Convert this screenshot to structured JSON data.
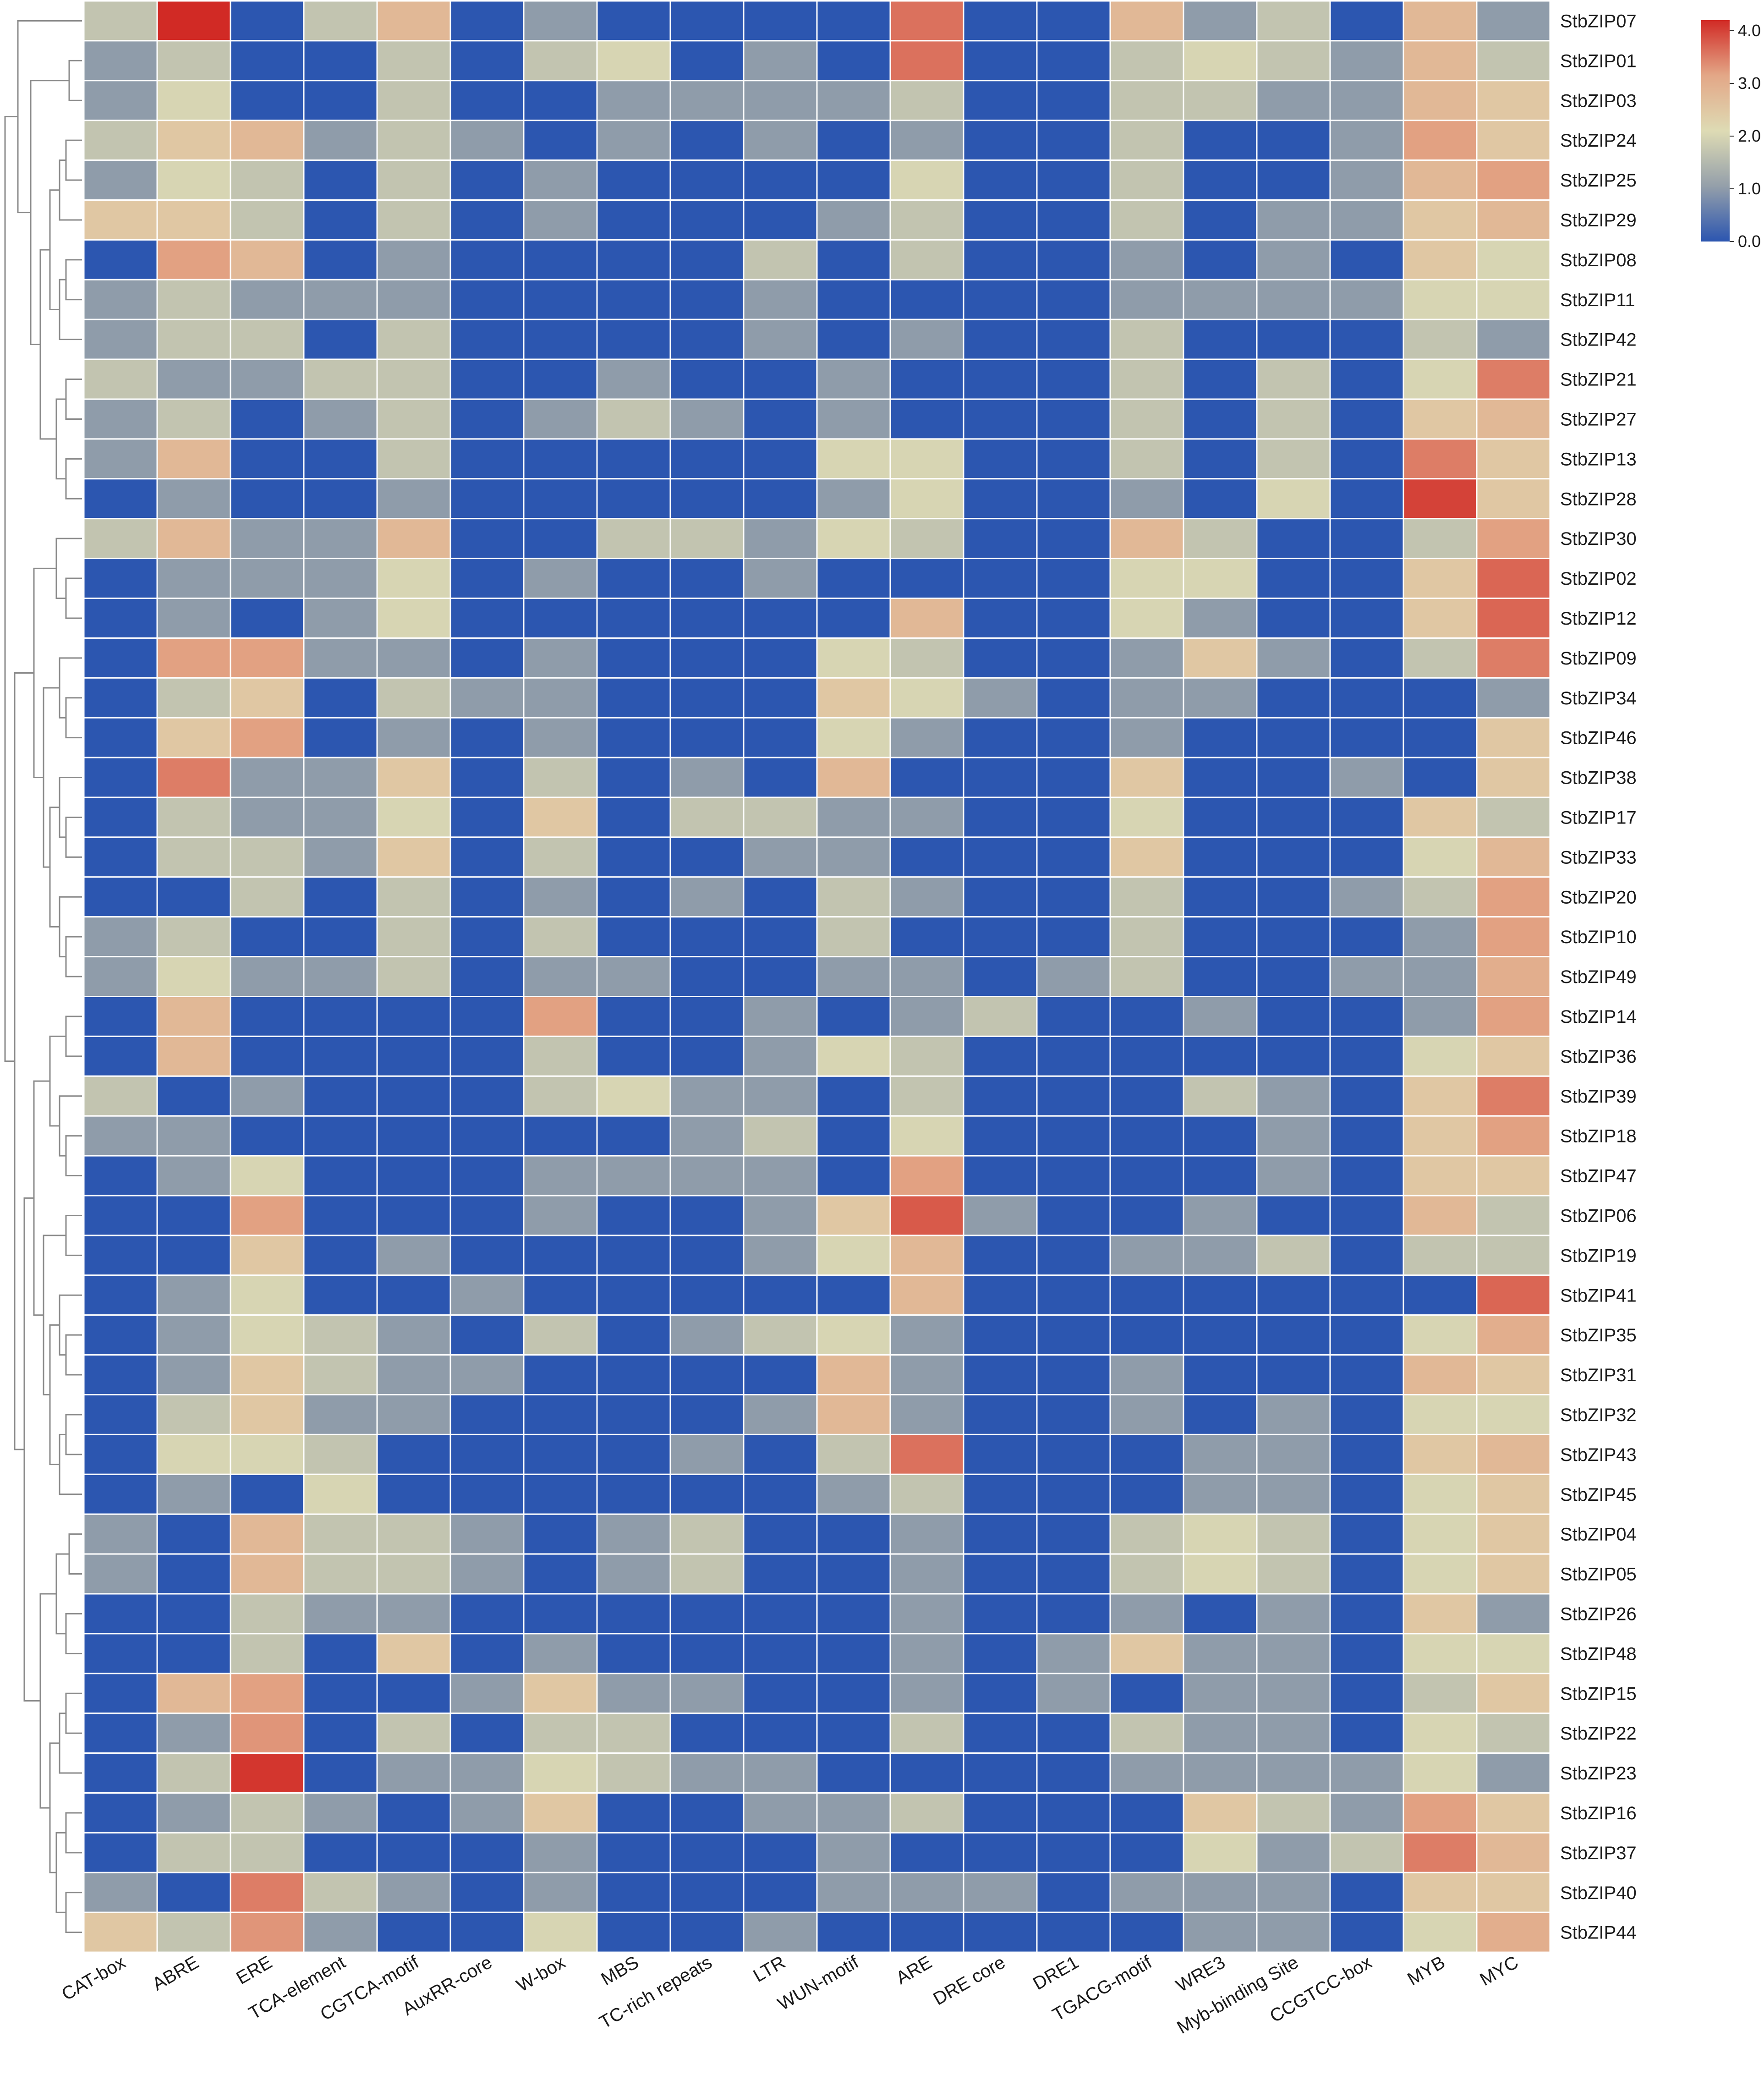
{
  "chart_data": {
    "type": "heatmap",
    "title": "",
    "xlabel": "",
    "ylabel": "",
    "columns": [
      "CAT-box",
      "ABRE",
      "ERE",
      "TCA-element",
      "CGTCA-motif",
      "AuxRR-core",
      "W-box",
      "MBS",
      "TC-rich repeats",
      "LTR",
      "WUN-motif",
      "ARE",
      "DRE core",
      "DRE1",
      "TGACG-motif",
      "WRE3",
      "Myb-binding Site",
      "CCGTCC-box",
      "MYB",
      "MYC"
    ],
    "rows": [
      "StbZIP07",
      "StbZIP01",
      "StbZIP03",
      "StbZIP24",
      "StbZIP25",
      "StbZIP29",
      "StbZIP08",
      "StbZIP11",
      "StbZIP42",
      "StbZIP21",
      "StbZIP27",
      "StbZIP13",
      "StbZIP28",
      "StbZIP30",
      "StbZIP02",
      "StbZIP12",
      "StbZIP09",
      "StbZIP34",
      "StbZIP46",
      "StbZIP38",
      "StbZIP17",
      "StbZIP33",
      "StbZIP20",
      "StbZIP10",
      "StbZIP49",
      "StbZIP14",
      "StbZIP36",
      "StbZIP39",
      "StbZIP18",
      "StbZIP47",
      "StbZIP06",
      "StbZIP19",
      "StbZIP41",
      "StbZIP35",
      "StbZIP31",
      "StbZIP32",
      "StbZIP43",
      "StbZIP45",
      "StbZIP04",
      "StbZIP05",
      "StbZIP26",
      "StbZIP48",
      "StbZIP15",
      "StbZIP22",
      "StbZIP23",
      "StbZIP16",
      "StbZIP37",
      "StbZIP40",
      "StbZIP44"
    ],
    "values": [
      [
        1.7,
        4.2,
        0,
        1.7,
        2.8,
        0,
        1,
        0,
        0,
        0,
        0,
        3.6,
        0,
        0,
        2.8,
        1,
        1.7,
        0,
        2.8,
        1
      ],
      [
        1,
        1.7,
        0,
        0,
        1.7,
        0,
        1.7,
        2,
        0,
        1,
        0,
        3.6,
        0,
        0,
        1.7,
        2,
        1.7,
        1,
        2.8,
        1.7
      ],
      [
        1,
        2,
        0,
        0,
        1.7,
        0,
        0,
        1,
        1,
        1,
        1,
        1.7,
        0,
        0,
        1.7,
        1.7,
        1,
        1,
        2.8,
        2.5
      ],
      [
        1.7,
        2.5,
        2.8,
        1,
        1.7,
        1,
        0,
        1,
        0,
        1,
        0,
        1,
        0,
        0,
        1.7,
        0,
        0,
        1,
        3.2,
        2.5
      ],
      [
        1,
        2,
        1.7,
        0,
        1.7,
        0,
        1,
        0,
        0,
        0,
        0,
        2,
        0,
        0,
        1.7,
        0,
        0,
        1,
        2.8,
        3.2
      ],
      [
        2.5,
        2.5,
        1.7,
        0,
        1.7,
        0,
        1,
        0,
        0,
        0,
        1,
        1.7,
        0,
        0,
        1.7,
        0,
        1,
        1,
        2.5,
        2.8
      ],
      [
        0,
        3.2,
        2.8,
        0,
        1,
        0,
        0,
        0,
        0,
        1.7,
        0,
        1.7,
        0,
        0,
        1,
        0,
        1,
        0,
        2.5,
        2
      ],
      [
        1,
        1.7,
        1,
        1,
        1,
        0,
        0,
        0,
        0,
        1,
        0,
        0,
        0,
        0,
        1,
        1,
        1,
        1,
        2,
        2
      ],
      [
        1,
        1.7,
        1.7,
        0,
        1.7,
        0,
        0,
        0,
        0,
        1,
        0,
        1,
        0,
        0,
        1.7,
        0,
        0,
        0,
        1.7,
        1
      ],
      [
        1.7,
        1,
        1,
        1.7,
        1.7,
        0,
        0,
        1,
        0,
        0,
        1,
        0,
        0,
        0,
        1.7,
        0,
        1.7,
        0,
        2,
        3.5
      ],
      [
        1,
        1.7,
        0,
        1,
        1.7,
        0,
        1,
        1.7,
        1,
        0,
        1,
        0,
        0,
        0,
        1.7,
        0,
        1.7,
        0,
        2.5,
        2.8
      ],
      [
        1,
        2.8,
        0,
        0,
        1.7,
        0,
        0,
        0,
        0,
        0,
        2,
        2,
        0,
        0,
        1.7,
        0,
        1.7,
        0,
        3.5,
        2.5
      ],
      [
        0,
        1,
        0,
        0,
        1,
        0,
        0,
        0,
        0,
        0,
        1,
        2,
        0,
        0,
        1,
        0,
        2,
        0,
        4,
        2.5
      ],
      [
        1.7,
        2.8,
        1,
        1,
        2.8,
        0,
        0,
        1.7,
        1.7,
        1,
        2,
        1.7,
        0,
        0,
        2.8,
        1.7,
        0,
        0,
        1.7,
        3.2
      ],
      [
        0,
        1,
        1,
        1,
        2,
        0,
        1,
        0,
        0,
        1,
        0,
        0,
        0,
        0,
        2,
        2,
        0,
        0,
        2.5,
        3.7
      ],
      [
        0,
        1,
        0,
        1,
        2,
        0,
        0,
        0,
        0,
        0,
        0,
        2.8,
        0,
        0,
        2,
        1,
        0,
        0,
        2.5,
        3.7
      ],
      [
        0,
        3.2,
        3.2,
        1,
        1,
        0,
        1,
        0,
        0,
        0,
        2,
        1.7,
        0,
        0,
        1,
        2.5,
        1,
        0,
        1.7,
        3.5
      ],
      [
        0,
        1.7,
        2.5,
        0,
        1.7,
        1,
        1,
        0,
        0,
        0,
        2.5,
        2,
        1,
        0,
        1,
        1,
        0,
        0,
        0,
        1
      ],
      [
        0,
        2.5,
        3.2,
        0,
        1,
        0,
        1,
        0,
        0,
        0,
        2,
        1,
        0,
        0,
        1,
        0,
        0,
        0,
        0,
        2.5
      ],
      [
        0,
        3.5,
        1,
        1,
        2.5,
        0,
        1.7,
        0,
        1,
        0,
        2.8,
        0,
        0,
        0,
        2.5,
        0,
        0,
        1,
        0,
        2.5
      ],
      [
        0,
        1.7,
        1,
        1,
        2,
        0,
        2.5,
        0,
        1.7,
        1.7,
        1,
        1,
        0,
        0,
        2,
        0,
        0,
        0,
        2.5,
        1.7
      ],
      [
        0,
        1.7,
        1.7,
        1,
        2.5,
        0,
        1.7,
        0,
        0,
        1,
        1,
        0,
        0,
        0,
        2.5,
        0,
        0,
        0,
        2,
        2.8
      ],
      [
        0,
        0,
        1.7,
        0,
        1.7,
        0,
        1,
        0,
        1,
        0,
        1.7,
        1,
        0,
        0,
        1.7,
        0,
        0,
        1,
        1.7,
        3.2
      ],
      [
        1,
        1.7,
        0,
        0,
        1.7,
        0,
        1.7,
        0,
        0,
        0,
        1.7,
        0,
        0,
        0,
        1.7,
        0,
        0,
        0,
        1,
        3.2
      ],
      [
        1,
        2,
        1,
        1,
        1.7,
        0,
        1,
        1,
        0,
        0,
        1,
        1,
        0,
        1,
        1.7,
        0,
        0,
        1,
        1,
        3
      ],
      [
        0,
        2.8,
        0,
        0,
        0,
        0,
        3.2,
        0,
        0,
        1,
        0,
        1,
        1.7,
        0,
        0,
        1,
        0,
        0,
        1,
        3.2
      ],
      [
        0,
        2.8,
        0,
        0,
        0,
        0,
        1.7,
        0,
        0,
        1,
        2,
        1.7,
        0,
        0,
        0,
        0,
        0,
        0,
        2,
        2.5
      ],
      [
        1.7,
        0,
        1,
        0,
        0,
        0,
        1.7,
        2,
        1,
        1,
        0,
        1.7,
        0,
        0,
        0,
        1.7,
        1,
        0,
        2.5,
        3.5
      ],
      [
        1,
        1,
        0,
        0,
        0,
        0,
        0,
        0,
        1,
        1.7,
        0,
        2,
        0,
        0,
        0,
        0,
        1,
        0,
        2.5,
        3.2
      ],
      [
        0,
        1,
        2,
        0,
        0,
        0,
        1,
        1,
        1,
        1,
        0,
        3.2,
        0,
        0,
        0,
        0,
        1,
        0,
        2.5,
        2.5
      ],
      [
        0,
        0,
        3.2,
        0,
        0,
        0,
        1,
        0,
        0,
        1,
        2.5,
        3.8,
        1,
        0,
        0,
        1,
        0,
        0,
        2.8,
        1.7
      ],
      [
        0,
        0,
        2.5,
        0,
        1,
        0,
        0,
        0,
        0,
        1,
        2,
        2.8,
        0,
        0,
        1,
        1,
        1.7,
        0,
        1.7,
        1.7
      ],
      [
        0,
        1,
        2,
        0,
        0,
        1,
        0,
        0,
        0,
        0,
        0,
        2.8,
        0,
        0,
        0,
        0,
        0,
        0,
        0,
        3.7
      ],
      [
        0,
        1,
        2,
        1.7,
        1,
        0,
        1.7,
        0,
        1,
        1.7,
        2,
        1,
        0,
        0,
        0,
        0,
        0,
        0,
        2,
        3
      ],
      [
        0,
        1,
        2.5,
        1.7,
        1,
        1,
        0,
        0,
        0,
        0,
        2.8,
        1,
        0,
        0,
        1,
        0,
        0,
        0,
        2.8,
        2.5
      ],
      [
        0,
        1.7,
        2.5,
        1,
        1,
        0,
        0,
        0,
        0,
        1,
        2.8,
        1,
        0,
        0,
        1,
        0,
        1,
        0,
        2,
        2
      ],
      [
        0,
        2,
        2,
        1.7,
        0,
        0,
        0,
        0,
        1,
        0,
        1.7,
        3.6,
        0,
        0,
        0,
        1,
        1,
        0,
        2.5,
        2.8
      ],
      [
        0,
        1,
        0,
        2,
        0,
        0,
        0,
        0,
        0,
        0,
        1,
        1.7,
        0,
        0,
        0,
        1,
        1,
        0,
        2,
        2.5
      ],
      [
        1,
        0,
        2.8,
        1.7,
        1.7,
        1,
        0,
        1,
        1.7,
        0,
        0,
        1,
        0,
        0,
        1.7,
        2,
        1.7,
        0,
        2,
        2.5
      ],
      [
        1,
        0,
        2.8,
        1.7,
        1.7,
        1,
        0,
        1,
        1.7,
        0,
        0,
        1,
        0,
        0,
        1.7,
        2,
        1.7,
        0,
        2,
        2.5
      ],
      [
        0,
        0,
        1.7,
        1,
        1,
        0,
        0,
        0,
        0,
        0,
        0,
        1,
        0,
        0,
        1,
        0,
        1,
        0,
        2.5,
        1
      ],
      [
        0,
        0,
        1.7,
        0,
        2.5,
        0,
        1,
        0,
        0,
        0,
        0,
        1,
        0,
        1,
        2.5,
        1,
        1,
        0,
        2,
        2
      ],
      [
        0,
        2.8,
        3.2,
        0,
        0,
        1,
        2.5,
        1,
        1,
        0,
        0,
        1,
        0,
        1,
        0,
        1,
        1,
        0,
        1.7,
        2.5
      ],
      [
        0,
        1,
        3.3,
        0,
        1.7,
        0,
        1.7,
        1.7,
        0,
        0,
        0,
        1.7,
        0,
        0,
        1.7,
        1,
        1,
        0,
        2,
        1.7
      ],
      [
        0,
        1.7,
        4.1,
        0,
        1,
        1,
        2,
        1.7,
        1,
        1,
        0,
        0,
        0,
        0,
        1,
        1,
        1,
        1,
        2,
        1
      ],
      [
        0,
        1,
        1.7,
        1,
        0,
        1,
        2.5,
        0,
        0,
        1,
        1,
        1.7,
        0,
        0,
        0,
        2.5,
        1.7,
        1,
        3.2,
        2.5
      ],
      [
        0,
        1.7,
        1.7,
        0,
        0,
        0,
        1,
        0,
        0,
        0,
        1,
        0,
        0,
        0,
        0,
        2,
        1,
        1.7,
        3.5,
        2.8
      ],
      [
        1,
        0,
        3.5,
        1.7,
        1,
        0,
        1,
        0,
        0,
        0,
        1,
        1,
        1,
        0,
        1,
        1,
        1,
        0,
        2.5,
        2.5
      ],
      [
        2.5,
        1.7,
        3.3,
        1,
        0,
        0,
        2,
        0,
        0,
        1,
        0,
        0,
        0,
        0,
        0,
        1,
        1,
        0,
        2,
        3
      ]
    ],
    "color_range": [
      0,
      4.2
    ],
    "colormap": [
      "#2c56b0",
      "#949faa",
      "#dedbb4",
      "#e3a787",
      "#d12a25"
    ],
    "legend": {
      "ticks": [
        "0.0",
        "1.0",
        "2.0",
        "3.0",
        "4.0"
      ],
      "position": "top-right"
    },
    "cell_border_color": "#ffffff",
    "dendrogram": "rows"
  }
}
